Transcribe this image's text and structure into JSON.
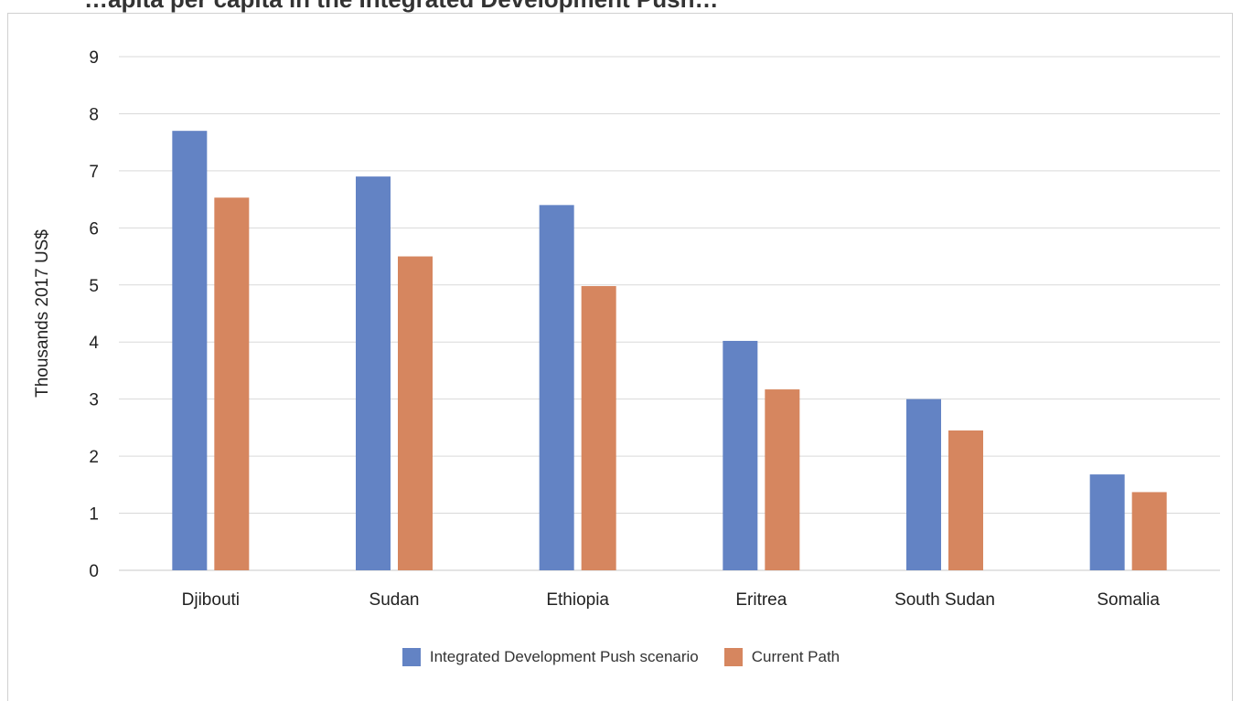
{
  "title": "…apita per capita in the Integrated Development Push…",
  "chart_data": {
    "type": "bar",
    "categories": [
      "Djibouti",
      "Sudan",
      "Ethiopia",
      "Eritrea",
      "South Sudan",
      "Somalia"
    ],
    "series": [
      {
        "name": "Integrated Development Push scenario",
        "color": "#6383C4",
        "values": [
          7.7,
          6.9,
          6.4,
          4.02,
          3.0,
          1.68
        ]
      },
      {
        "name": "Current Path",
        "color": "#D6865F",
        "values": [
          6.53,
          5.5,
          4.98,
          3.17,
          2.45,
          1.37
        ]
      }
    ],
    "ylabel": "Thousands 2017 US$",
    "ylim": [
      0,
      9
    ],
    "yticks": [
      0,
      1,
      2,
      3,
      4,
      5,
      6,
      7,
      8,
      9
    ],
    "grid": true,
    "legend_position": "bottom"
  }
}
